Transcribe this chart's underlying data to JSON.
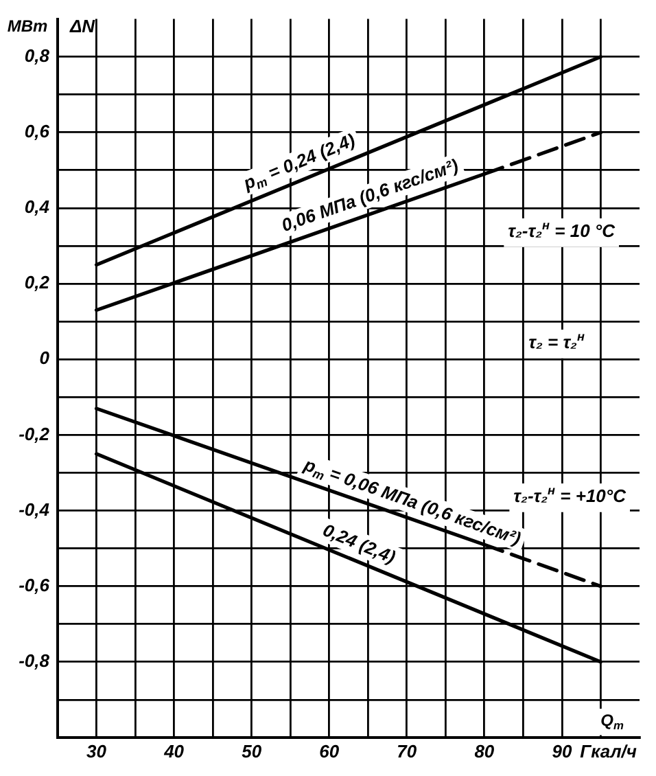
{
  "chart_data": {
    "type": "line",
    "ylabel": "МВт",
    "xlabel": "Q$_{т}$",
    "xlim": [
      25,
      100
    ],
    "ylim": [
      -1.0,
      0.9
    ],
    "xticks": [
      {
        "value": 25,
        "label": null
      },
      30,
      {
        "value": 35,
        "label": null
      },
      40,
      {
        "value": 45,
        "label": null
      },
      50,
      {
        "value": 55,
        "label": null
      },
      60,
      {
        "value": 65,
        "label": null
      },
      70,
      {
        "value": 75,
        "label": null
      },
      80,
      {
        "value": 85,
        "label": null
      },
      90,
      {
        "value": 95,
        "label": null
      }
    ],
    "yticks": [
      {
        "value": -0.9,
        "label": null
      },
      {
        "value": -0.8,
        "label": "-0,8"
      },
      {
        "value": -0.7,
        "label": null
      },
      {
        "value": -0.6,
        "label": "-0,6"
      },
      {
        "value": -0.5,
        "label": null
      },
      {
        "value": -0.4,
        "label": "-0,4"
      },
      {
        "value": -0.3,
        "label": null
      },
      {
        "value": -0.2,
        "label": "-0,2"
      },
      {
        "value": -0.1,
        "label": null
      },
      0,
      {
        "value": 0.1,
        "label": null
      },
      {
        "value": 0.2,
        "label": "0,2"
      },
      {
        "value": 0.3,
        "label": null
      },
      {
        "value": 0.4,
        "label": "0,4"
      },
      {
        "value": 0.5,
        "label": null
      },
      {
        "value": 0.6,
        "label": "0,6"
      },
      {
        "value": 0.7,
        "label": null
      },
      {
        "value": 0.8,
        "label": "0,8"
      }
    ],
    "grid": true,
    "legend": false,
    "marker": "none",
    "series": [
      {
        "color": "#000000",
        "line_style": "solid",
        "x": [
          30,
          95
        ],
        "values": [
          0.25,
          0.8
        ]
      },
      {
        "color": "#000000",
        "line_style": "solid",
        "x": [
          30,
          80
        ],
        "values": [
          0.13,
          0.49
        ]
      },
      {
        "color": "#000000",
        "line_style": "dashed",
        "x": [
          80,
          95
        ],
        "values": [
          0.49,
          0.6
        ]
      },
      {
        "color": "#000000",
        "line_style": "solid",
        "x": [
          30,
          80
        ],
        "values": [
          -0.13,
          -0.49
        ]
      },
      {
        "color": "#000000",
        "line_style": "dashed",
        "x": [
          80,
          95
        ],
        "values": [
          -0.49,
          -0.6
        ]
      },
      {
        "color": "#000000",
        "line_style": "solid",
        "x": [
          30,
          95
        ],
        "values": [
          -0.25,
          -0.8
        ]
      }
    ],
    "annotations": [
      {
        "text": "p$_{т}$ = 0,24 (2,4)",
        "x": 57,
        "y": 0.48
      },
      {
        "text": "0,06 МПа (0,6 кгс/см²)",
        "x": 66,
        "y": 0.39
      },
      {
        "text": "p$_{т}$ = 0,06 МПа (0,6 кгс/см²)",
        "x": 70,
        "y": -0.42
      },
      {
        "text": "0,24 (2,4)",
        "x": 63,
        "y": -0.53
      },
      "ΔN",
      "τ₂-τ₂$^{н}$ = 10 °C",
      "τ₂ = τ₂$^{н}$",
      "τ₂-τ₂$^{н}$ = +10°C",
      "Гкал/ч"
    ]
  }
}
